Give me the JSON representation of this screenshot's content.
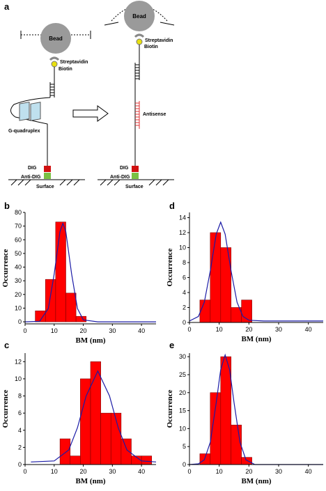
{
  "diagram": {
    "panel_label": "a",
    "left": {
      "bead": "Bead",
      "streptavidin": "Streptavidin",
      "biotin": "Biotin",
      "g_quadruplex": "G-quadruplex",
      "dig": "DIG",
      "anti_dig": "Anti-DIG",
      "surface": "Surface"
    },
    "right": {
      "bead": "Bead",
      "streptavidin": "Streptavidin",
      "biotin": "Biotin",
      "antisense": "Antisense",
      "dig": "DIG",
      "anti_dig": "Anti-DIG",
      "surface": "Surface"
    }
  },
  "chart_data": [
    {
      "type": "histogram",
      "panel_label": "b",
      "bins": [
        3.5,
        7,
        10.5,
        14,
        17.5,
        21
      ],
      "values": [
        8,
        31,
        73,
        21,
        4
      ],
      "color": "#ff0000",
      "fit": {
        "color": "#1a1aa6",
        "x": [
          0,
          5,
          8,
          10,
          12,
          13,
          14,
          16,
          18,
          20,
          25,
          30,
          40,
          45
        ],
        "values": [
          0,
          0.4,
          9.7,
          35,
          66,
          72,
          66,
          35,
          9.7,
          1.4,
          0,
          0,
          0,
          0
        ]
      },
      "xlim": [
        0,
        45
      ],
      "ylim": [
        -1.5,
        80
      ],
      "xticks": [
        0,
        10,
        20,
        30,
        40
      ],
      "yticks": [
        0,
        10,
        20,
        30,
        40,
        50,
        60,
        70,
        80
      ],
      "x_label": "BM (nm)",
      "y_label": "Occurrence"
    },
    {
      "type": "histogram",
      "panel_label": "d",
      "bins": [
        3.5,
        7,
        10.5,
        14,
        17.5,
        21
      ],
      "values": [
        3,
        12,
        10,
        2,
        3
      ],
      "color": "#ff0000",
      "fit": {
        "color": "#1a1aa6",
        "x": [
          0,
          3,
          5,
          7,
          9,
          10.5,
          12,
          14,
          16,
          18,
          20,
          25,
          30,
          40,
          45
        ],
        "values": [
          0.2,
          0.8,
          2.7,
          6.9,
          11.8,
          13.4,
          11.8,
          6.9,
          2.7,
          0.8,
          0.3,
          0.2,
          0.2,
          0.2,
          0.2
        ]
      },
      "xlim": [
        0,
        45
      ],
      "ylim": [
        0,
        14.7
      ],
      "xticks": [
        0,
        10,
        20,
        30,
        40
      ],
      "yticks": [
        0,
        2,
        4,
        6,
        8,
        10,
        12,
        14
      ],
      "x_label": "BM (nm)",
      "y_label": "Occurrence"
    },
    {
      "type": "histogram",
      "panel_label": "c",
      "bins": [
        12,
        15.5,
        19,
        22.5,
        26,
        29.5,
        33,
        36.5,
        40,
        43.5
      ],
      "values": [
        3,
        1,
        10,
        12,
        6,
        6,
        3,
        1,
        1
      ],
      "color": "#ff0000",
      "fit": {
        "color": "#1a1aa6",
        "x": [
          2,
          10,
          15,
          18,
          21,
          25,
          29,
          32,
          35,
          40,
          45
        ],
        "values": [
          0.3,
          0.42,
          1.7,
          4.3,
          8,
          10.9,
          8,
          4.3,
          1.7,
          0.42,
          0.3
        ]
      },
      "xlim": [
        0,
        45
      ],
      "ylim": [
        0,
        13
      ],
      "xticks": [
        0,
        10,
        20,
        30,
        40
      ],
      "yticks": [
        0,
        2,
        4,
        6,
        8,
        10,
        12
      ],
      "x_label": "BM (nm)",
      "y_label": "Occurrence"
    },
    {
      "type": "histogram",
      "panel_label": "e",
      "bins": [
        3.5,
        7,
        10.5,
        14,
        17.5,
        21
      ],
      "values": [
        3,
        20,
        30,
        11,
        2
      ],
      "color": "#ff0000",
      "fit": {
        "color": "#1a1aa6",
        "x": [
          0,
          3,
          5,
          7,
          9,
          10.5,
          12,
          13.5,
          15,
          17,
          19,
          22,
          30,
          45
        ],
        "values": [
          0,
          0.2,
          1.3,
          6.2,
          17.2,
          26.4,
          30.5,
          26.4,
          17.2,
          6.2,
          1.3,
          0,
          0,
          0
        ]
      },
      "xlim": [
        0,
        45
      ],
      "ylim": [
        0,
        31
      ],
      "xticks": [
        0,
        10,
        20,
        30,
        40
      ],
      "yticks": [
        0,
        5,
        10,
        15,
        20,
        25,
        30
      ],
      "x_label": "BM (nm)",
      "y_label": "Occurrence"
    }
  ]
}
